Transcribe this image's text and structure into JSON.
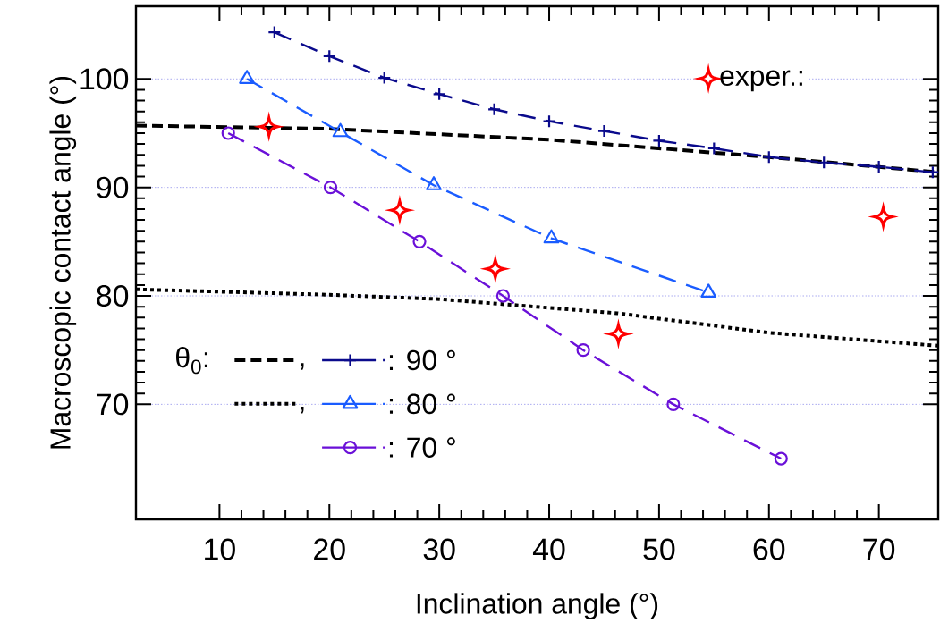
{
  "chart_data": {
    "type": "line",
    "xlabel": "Inclination angle (°)",
    "ylabel": "Macroscopic contact angle (°)",
    "legend_title": "θ$_{0}$:",
    "xlim": [
      2.4,
      75.4
    ],
    "ylim": [
      59.4,
      106.7
    ],
    "xticks": [
      10,
      20,
      30,
      40,
      50,
      60,
      70
    ],
    "yticks": [
      70,
      80,
      90,
      100
    ],
    "grid": "y",
    "legend": "bottom left",
    "series": [
      {
        "name": ",",
        "color": "#000000",
        "line_style": "dashed",
        "marker": "none",
        "x": [
          2.4,
          20,
          40,
          60,
          75.4
        ],
        "values": [
          95.7,
          95.4,
          94.4,
          92.8,
          91.4
        ]
      },
      {
        "name": ",",
        "color": "#000000",
        "line_style": "dotted",
        "marker": "none",
        "x": [
          2.4,
          20,
          30,
          46.2,
          60,
          75.4
        ],
        "values": [
          80.6,
          80.1,
          79.7,
          78.4,
          76.6,
          75.4
        ]
      },
      {
        "name": ": 90 °",
        "color": "#0a0a8c",
        "line_style": "dashed",
        "marker": "cross",
        "x": [
          15,
          20,
          25,
          30,
          35,
          40,
          45,
          50,
          55,
          60,
          65,
          70,
          74.9
        ],
        "values": [
          104.3,
          102.1,
          100.1,
          98.6,
          97.2,
          96.1,
          95.2,
          94.3,
          93.6,
          92.8,
          92.3,
          91.9,
          91.4
        ]
      },
      {
        "name": ": 80 °",
        "color": "#1a5cff",
        "line_style": "dashed",
        "marker": "triangle",
        "x": [
          12.5,
          21.0,
          29.5,
          40.2,
          54.5
        ],
        "values": [
          100.0,
          95.1,
          90.2,
          85.3,
          80.3
        ]
      },
      {
        "name": ": 70 °",
        "color": "#6a10d8",
        "line_style": "dashed",
        "marker": "circle",
        "x": [
          10.8,
          20.1,
          28.2,
          35.8,
          43.1,
          51.3,
          61.1
        ],
        "values": [
          95.0,
          90.0,
          85.0,
          80.0,
          75.0,
          70.0,
          65.0
        ]
      },
      {
        "name": "exper.:",
        "type": "scatter",
        "color": "#ff0000",
        "marker": "star",
        "x": [
          14.5,
          26.4,
          35.1,
          46.3,
          70.4
        ],
        "values": [
          95.6,
          87.9,
          82.5,
          76.5,
          87.3
        ]
      }
    ]
  }
}
